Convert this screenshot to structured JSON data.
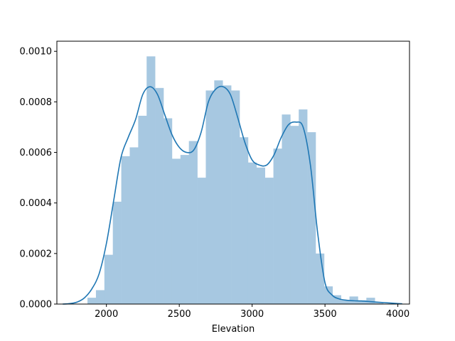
{
  "chart_data": {
    "type": "bar",
    "subtype": "histogram-with-kde",
    "title": "",
    "xlabel": "Elevation",
    "ylabel": "",
    "xlim": [
      1660,
      4080
    ],
    "ylim": [
      0,
      0.00104
    ],
    "grid": false,
    "legend": "none",
    "x_ticks": [
      2000,
      2500,
      3000,
      3500,
      4000
    ],
    "x_tick_labels": [
      "2000",
      "2500",
      "3000",
      "3500",
      "4000"
    ],
    "y_ticks": [
      0,
      0.0002,
      0.0004,
      0.0006,
      0.0008,
      0.001
    ],
    "y_tick_labels": [
      "0.0000",
      "0.0002",
      "0.0004",
      "0.0006",
      "0.0008",
      "0.0010"
    ],
    "colors": {
      "bars": "#a7c8e1",
      "kde": "#1f77b4",
      "frame": "#000000"
    },
    "bins": [
      {
        "x0": 1870,
        "x1": 1928,
        "density": 2.5e-05
      },
      {
        "x0": 1928,
        "x1": 1986,
        "density": 5.5e-05
      },
      {
        "x0": 1986,
        "x1": 2044,
        "density": 0.000195
      },
      {
        "x0": 2044,
        "x1": 2102,
        "density": 0.000405
      },
      {
        "x0": 2102,
        "x1": 2160,
        "density": 0.000585
      },
      {
        "x0": 2160,
        "x1": 2218,
        "density": 0.00062
      },
      {
        "x0": 2218,
        "x1": 2276,
        "density": 0.000745
      },
      {
        "x0": 2276,
        "x1": 2334,
        "density": 0.00098
      },
      {
        "x0": 2334,
        "x1": 2392,
        "density": 0.000855
      },
      {
        "x0": 2392,
        "x1": 2450,
        "density": 0.000735
      },
      {
        "x0": 2450,
        "x1": 2508,
        "density": 0.000575
      },
      {
        "x0": 2508,
        "x1": 2566,
        "density": 0.00059
      },
      {
        "x0": 2566,
        "x1": 2624,
        "density": 0.000645
      },
      {
        "x0": 2624,
        "x1": 2682,
        "density": 0.0005
      },
      {
        "x0": 2682,
        "x1": 2740,
        "density": 0.000845
      },
      {
        "x0": 2740,
        "x1": 2798,
        "density": 0.000885
      },
      {
        "x0": 2798,
        "x1": 2856,
        "density": 0.000865
      },
      {
        "x0": 2856,
        "x1": 2914,
        "density": 0.000845
      },
      {
        "x0": 2914,
        "x1": 2972,
        "density": 0.00066
      },
      {
        "x0": 2972,
        "x1": 3030,
        "density": 0.00056
      },
      {
        "x0": 3030,
        "x1": 3088,
        "density": 0.00054
      },
      {
        "x0": 3088,
        "x1": 3146,
        "density": 0.0005
      },
      {
        "x0": 3146,
        "x1": 3204,
        "density": 0.000615
      },
      {
        "x0": 3204,
        "x1": 3262,
        "density": 0.00075
      },
      {
        "x0": 3262,
        "x1": 3320,
        "density": 0.000705
      },
      {
        "x0": 3320,
        "x1": 3378,
        "density": 0.00077
      },
      {
        "x0": 3378,
        "x1": 3436,
        "density": 0.00068
      },
      {
        "x0": 3436,
        "x1": 3494,
        "density": 0.0002
      },
      {
        "x0": 3494,
        "x1": 3552,
        "density": 7e-05
      },
      {
        "x0": 3552,
        "x1": 3610,
        "density": 3.5e-05
      },
      {
        "x0": 3610,
        "x1": 3668,
        "density": 1.5e-05
      },
      {
        "x0": 3668,
        "x1": 3726,
        "density": 3e-05
      },
      {
        "x0": 3726,
        "x1": 3784,
        "density": 1.5e-05
      },
      {
        "x0": 3784,
        "x1": 3842,
        "density": 2.5e-05
      },
      {
        "x0": 3842,
        "x1": 3900,
        "density": 5e-06
      }
    ],
    "kde": {
      "x": [
        1700,
        1750,
        1800,
        1850,
        1900,
        1950,
        2000,
        2050,
        2100,
        2150,
        2200,
        2250,
        2300,
        2350,
        2400,
        2450,
        2500,
        2550,
        2600,
        2650,
        2700,
        2750,
        2800,
        2850,
        2900,
        2950,
        3000,
        3050,
        3100,
        3150,
        3200,
        3250,
        3300,
        3350,
        3400,
        3450,
        3500,
        3550,
        3600,
        3650,
        3700,
        3750,
        3800,
        3850,
        3900,
        3950,
        4000,
        4030
      ],
      "y": [
        0.0,
        2e-06,
        8e-06,
        2.5e-05,
        6e-05,
        0.00012,
        0.00024,
        0.00041,
        0.00058,
        0.00066,
        0.00073,
        0.00083,
        0.00086,
        0.00083,
        0.00075,
        0.00067,
        0.00062,
        0.0006,
        0.00061,
        0.00068,
        0.0008,
        0.00085,
        0.00086,
        0.00083,
        0.00074,
        0.00064,
        0.00057,
        0.00055,
        0.00055,
        0.00059,
        0.00066,
        0.00071,
        0.00072,
        0.0007,
        0.00055,
        0.00028,
        8.5e-05,
        3.5e-05,
        2e-05,
        1.5e-05,
        1.3e-05,
        1.2e-05,
        1e-05,
        8e-06,
        6e-06,
        4e-06,
        2e-06,
        1e-06
      ]
    }
  }
}
